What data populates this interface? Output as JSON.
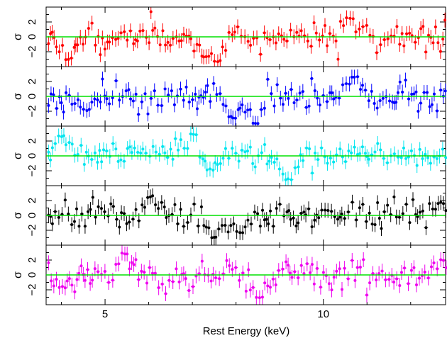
{
  "chart_data": {
    "type": "scatter",
    "xlabel": "Rest Energy (keV)",
    "xlim": [
      3.65,
      12.8
    ],
    "x_ticks": [
      5,
      10
    ],
    "x_tick_labels": [
      "5",
      "10"
    ],
    "x_minor_tick_step": 1,
    "ylabel": "σ",
    "ylim": [
      -4,
      4
    ],
    "y_ticks": [
      -2,
      0,
      2
    ],
    "y_tick_labels": [
      "−2",
      "0",
      "2"
    ],
    "y_minor_tick_step": 1,
    "zero_line_color": "#00e000",
    "panels": [
      {
        "color": "#ff0000",
        "seed": 11,
        "features": [
          {
            "x": 4.15,
            "value": -3.0
          },
          {
            "x": 7.3,
            "value": -2.6
          },
          {
            "x": 7.55,
            "value": -3.2
          },
          {
            "x": 10.6,
            "value": 2.5
          }
        ]
      },
      {
        "color": "#0000ff",
        "seed": 23,
        "features": [
          {
            "x": 4.6,
            "value": -1.8
          },
          {
            "x": 7.9,
            "value": -2.8
          },
          {
            "x": 8.45,
            "value": -3.5
          },
          {
            "x": 10.7,
            "value": 2.6
          }
        ]
      },
      {
        "color": "#00e5ee",
        "seed": 37,
        "features": [
          {
            "x": 4.0,
            "value": 2.6
          },
          {
            "x": 7.0,
            "value": 2.8
          },
          {
            "x": 9.2,
            "value": -3.2
          },
          {
            "x": 7.4,
            "value": -1.8
          }
        ]
      },
      {
        "color": "#000000",
        "seed": 41,
        "features": [
          {
            "x": 6.05,
            "value": 2.5
          },
          {
            "x": 7.5,
            "value": -3.0
          },
          {
            "x": 8.1,
            "value": -2.2
          },
          {
            "x": 12.7,
            "value": 1.6
          }
        ]
      },
      {
        "color": "#ee00ee",
        "seed": 53,
        "features": [
          {
            "x": 4.0,
            "value": -1.6
          },
          {
            "x": 5.45,
            "value": 2.9
          },
          {
            "x": 8.55,
            "value": -3.1
          },
          {
            "x": 12.7,
            "value": 2.0
          }
        ]
      }
    ]
  }
}
